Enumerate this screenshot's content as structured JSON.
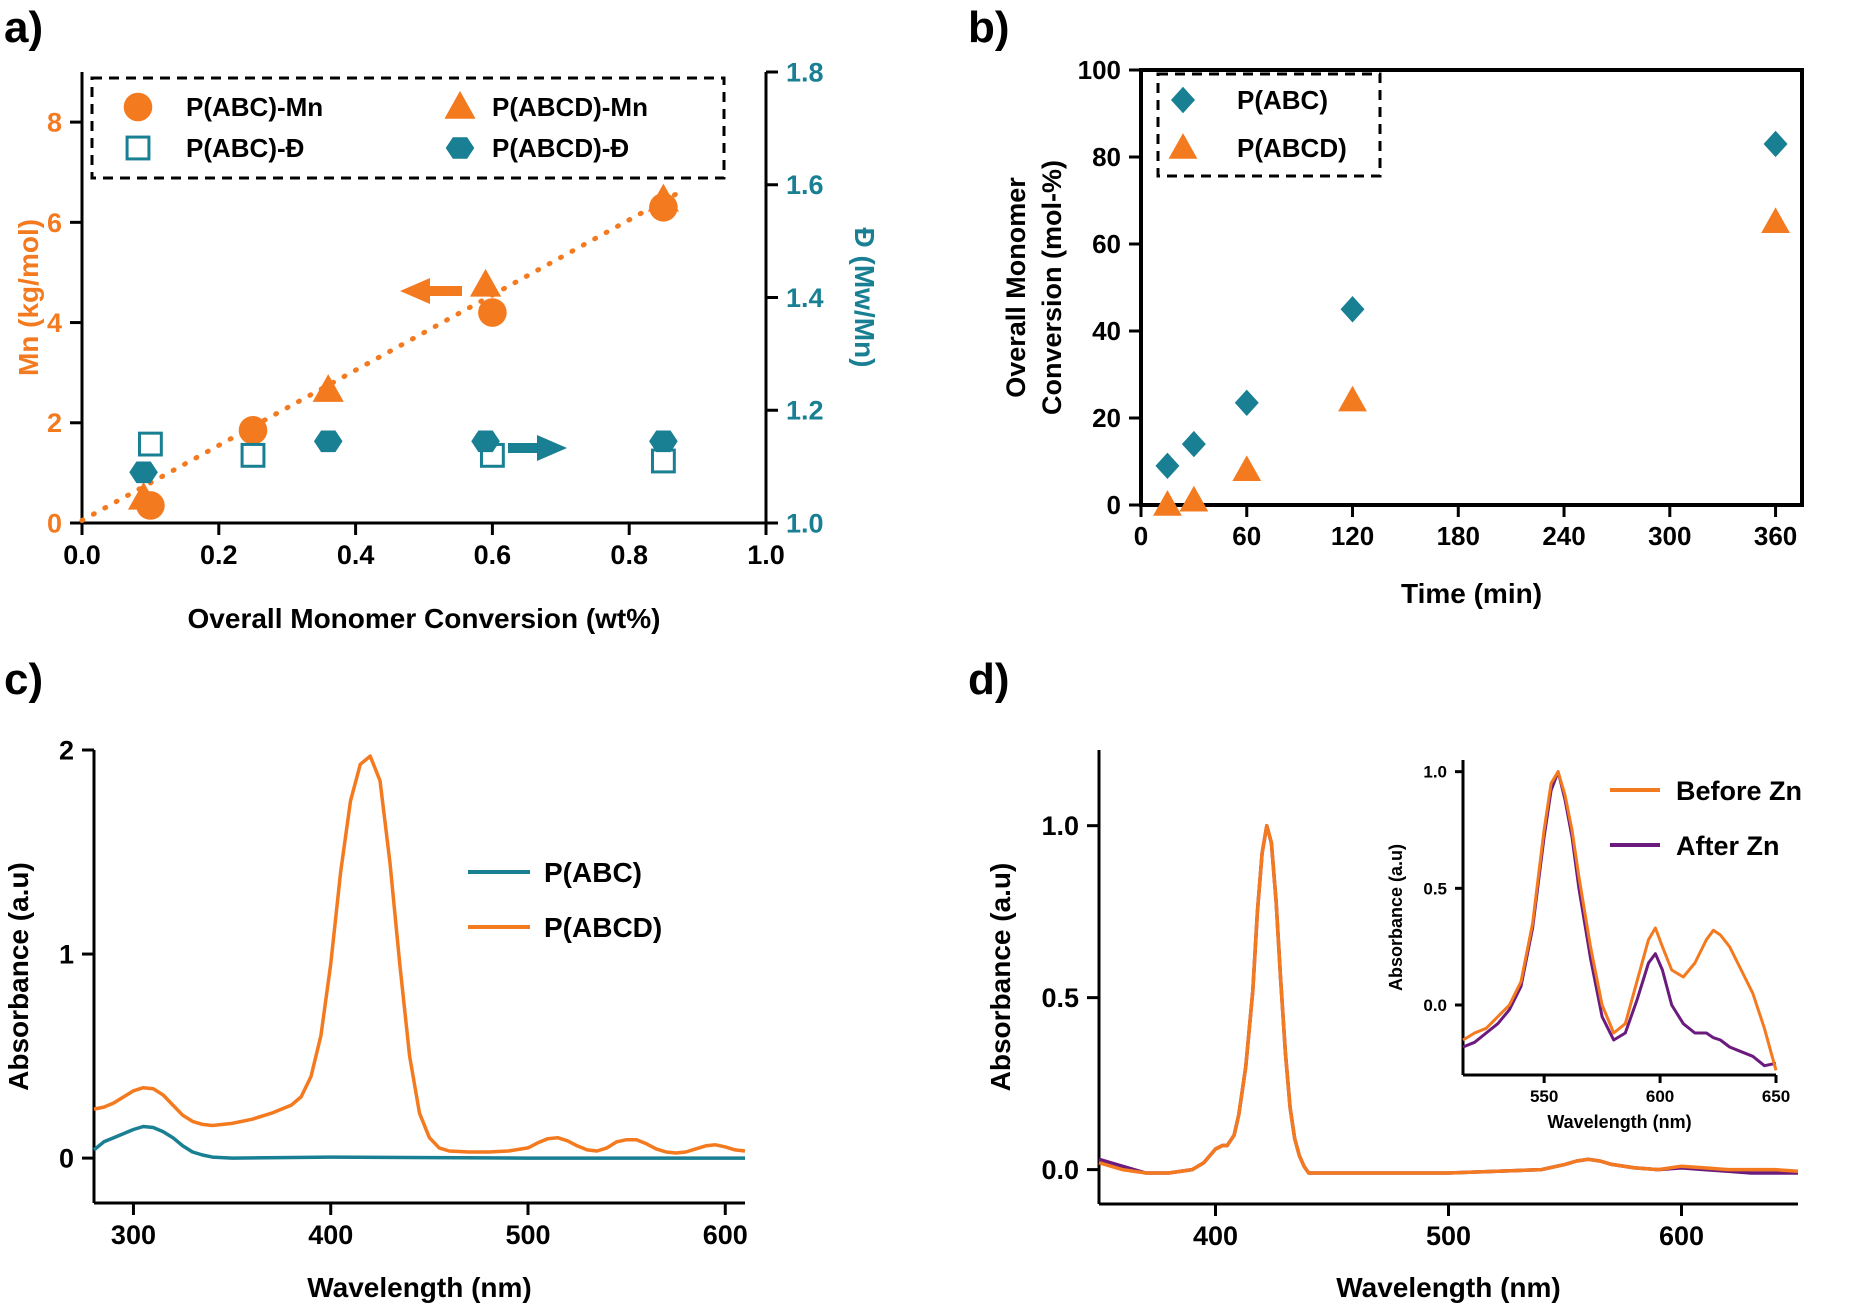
{
  "colors": {
    "orange": "#f47a20",
    "teal": "#197f93",
    "purple": "#6b1a7e",
    "axis": "#000000"
  },
  "chart_data": [
    {
      "panel": "a)",
      "type": "scatter",
      "xlabel": "Overall Monomer Conversion (wt%)",
      "ylabel_left": "Mn (kg/mol)",
      "ylabel_right": "Đ (Mw/Mn)",
      "xlim": [
        0.0,
        1.0
      ],
      "ylim_left": [
        0,
        9
      ],
      "ylim_right": [
        1.0,
        1.8
      ],
      "xticks": [
        "0.0",
        "0.2",
        "0.4",
        "0.6",
        "0.8",
        "1.0"
      ],
      "yticks_left": [
        "0",
        "2",
        "4",
        "6",
        "8"
      ],
      "yticks_right": [
        "1.0",
        "1.2",
        "1.4",
        "1.6",
        "1.8"
      ],
      "legend": "top, dashed box, 2 columns",
      "series": [
        {
          "name": "P(ABC)-Mn",
          "axis": "left",
          "marker": "circle",
          "color": "orange",
          "x": [
            0.1,
            0.25,
            0.6,
            0.85
          ],
          "y": [
            0.35,
            1.85,
            4.2,
            6.3
          ]
        },
        {
          "name": "P(ABCD)-Mn",
          "axis": "left",
          "marker": "triangle",
          "color": "orange",
          "x": [
            0.09,
            0.36,
            0.59,
            0.85
          ],
          "y": [
            0.5,
            2.65,
            4.75,
            6.45
          ]
        },
        {
          "name": "P(ABC)-Đ",
          "axis": "right",
          "marker": "open-square",
          "color": "teal",
          "x": [
            0.1,
            0.25,
            0.6,
            0.85
          ],
          "y": [
            1.14,
            1.12,
            1.12,
            1.11
          ]
        },
        {
          "name": "P(ABCD)-Đ",
          "axis": "right",
          "marker": "hexagon",
          "color": "teal",
          "x": [
            0.09,
            0.36,
            0.59,
            0.85
          ],
          "y": [
            1.09,
            1.145,
            1.145,
            1.145
          ]
        }
      ],
      "fit_line": {
        "x": [
          0.0,
          0.88
        ],
        "y": [
          0.05,
          6.65
        ],
        "style": "dotted",
        "color": "orange"
      }
    },
    {
      "panel": "b)",
      "type": "scatter",
      "xlabel": "Time (min)",
      "ylabel": "Overall Monomer Conversion (mol-%)",
      "xlim": [
        0,
        375
      ],
      "ylim": [
        0,
        100
      ],
      "xticks": [
        "0",
        "60",
        "120",
        "180",
        "240",
        "300",
        "360"
      ],
      "yticks": [
        "0",
        "20",
        "40",
        "60",
        "80",
        "100"
      ],
      "legend": "top-left, dashed box",
      "series": [
        {
          "name": "P(ABC)",
          "marker": "diamond",
          "color": "teal",
          "x": [
            15,
            30,
            60,
            120,
            360
          ],
          "y": [
            9,
            14,
            23.5,
            45,
            83
          ]
        },
        {
          "name": "P(ABCD)",
          "marker": "triangle",
          "color": "orange",
          "x": [
            15,
            30,
            60,
            120,
            360
          ],
          "y": [
            0,
            1,
            8,
            24,
            65
          ]
        }
      ]
    },
    {
      "panel": "c)",
      "type": "line",
      "xlabel": "Wavelength (nm)",
      "ylabel": "Absorbance (a.u)",
      "xlim": [
        280,
        610
      ],
      "ylim": [
        -0.22,
        2
      ],
      "xticks": [
        "300",
        "400",
        "500",
        "600"
      ],
      "yticks": [
        "0",
        "1",
        "2"
      ],
      "legend": "right of peak",
      "series": [
        {
          "name": "P(ABC)",
          "color": "teal",
          "x": [
            280,
            285,
            290,
            295,
            300,
            305,
            310,
            315,
            320,
            325,
            330,
            335,
            340,
            350,
            400,
            500,
            610
          ],
          "y": [
            0.04,
            0.08,
            0.1,
            0.12,
            0.14,
            0.155,
            0.15,
            0.13,
            0.1,
            0.06,
            0.03,
            0.015,
            0.005,
            0.0,
            0.005,
            0.0,
            0.0
          ]
        },
        {
          "name": "P(ABCD)",
          "color": "orange",
          "x": [
            280,
            285,
            290,
            295,
            300,
            305,
            310,
            315,
            320,
            325,
            330,
            335,
            340,
            350,
            360,
            370,
            380,
            385,
            390,
            395,
            400,
            405,
            410,
            415,
            420,
            425,
            430,
            435,
            440,
            445,
            450,
            455,
            460,
            470,
            480,
            490,
            500,
            505,
            510,
            515,
            520,
            525,
            530,
            535,
            540,
            545,
            550,
            555,
            560,
            565,
            570,
            575,
            580,
            585,
            590,
            595,
            600,
            605,
            610
          ],
          "y": [
            0.24,
            0.25,
            0.27,
            0.3,
            0.33,
            0.345,
            0.34,
            0.31,
            0.26,
            0.21,
            0.18,
            0.165,
            0.16,
            0.17,
            0.19,
            0.22,
            0.26,
            0.3,
            0.4,
            0.6,
            0.95,
            1.4,
            1.75,
            1.93,
            1.97,
            1.85,
            1.45,
            0.95,
            0.5,
            0.22,
            0.1,
            0.05,
            0.035,
            0.03,
            0.03,
            0.035,
            0.05,
            0.075,
            0.095,
            0.1,
            0.085,
            0.06,
            0.04,
            0.035,
            0.05,
            0.08,
            0.09,
            0.09,
            0.07,
            0.045,
            0.03,
            0.025,
            0.03,
            0.045,
            0.06,
            0.065,
            0.055,
            0.04,
            0.035
          ]
        }
      ]
    },
    {
      "panel": "d)",
      "type": "line",
      "xlabel": "Wavelength (nm)",
      "ylabel": "Absorbance (a.u)",
      "xlim": [
        350,
        650
      ],
      "ylim": [
        -0.1,
        1.22
      ],
      "xticks": [
        "400",
        "500",
        "600"
      ],
      "yticks": [
        "0.0",
        "0.5",
        "1.0"
      ],
      "legend": "top-right",
      "series": [
        {
          "name": "Before Zn",
          "color": "orange",
          "x": [
            350,
            360,
            370,
            380,
            390,
            395,
            400,
            403,
            405,
            408,
            410,
            413,
            416,
            418,
            420,
            422,
            424,
            426,
            428,
            430,
            432,
            434,
            436,
            438,
            440,
            445,
            450,
            500,
            540,
            550,
            555,
            560,
            565,
            570,
            580,
            590,
            600,
            610,
            620,
            630,
            640,
            650
          ],
          "y": [
            0.02,
            0.0,
            -0.01,
            -0.01,
            0.0,
            0.02,
            0.06,
            0.07,
            0.07,
            0.1,
            0.16,
            0.3,
            0.52,
            0.75,
            0.92,
            1.0,
            0.95,
            0.78,
            0.55,
            0.34,
            0.18,
            0.09,
            0.04,
            0.01,
            -0.01,
            -0.01,
            -0.01,
            -0.01,
            0.0,
            0.015,
            0.025,
            0.03,
            0.025,
            0.015,
            0.005,
            0.0,
            0.01,
            0.005,
            0.0,
            0.0,
            0.0,
            -0.005
          ]
        },
        {
          "name": "After Zn",
          "color": "purple",
          "x": [
            350,
            360,
            370,
            380,
            390,
            395,
            400,
            403,
            405,
            408,
            410,
            413,
            416,
            418,
            420,
            422,
            424,
            426,
            428,
            430,
            432,
            434,
            436,
            438,
            440,
            445,
            450,
            500,
            540,
            550,
            555,
            560,
            565,
            570,
            580,
            590,
            600,
            610,
            620,
            630,
            640,
            650
          ],
          "y": [
            0.03,
            0.01,
            -0.01,
            -0.01,
            0.0,
            0.02,
            0.06,
            0.07,
            0.07,
            0.1,
            0.16,
            0.3,
            0.52,
            0.75,
            0.92,
            1.0,
            0.95,
            0.78,
            0.55,
            0.34,
            0.18,
            0.09,
            0.04,
            0.01,
            -0.01,
            -0.01,
            -0.01,
            -0.01,
            0.0,
            0.015,
            0.025,
            0.03,
            0.025,
            0.015,
            0.005,
            0.0,
            0.005,
            0.0,
            -0.005,
            -0.01,
            -0.01,
            -0.01
          ]
        }
      ],
      "inset": {
        "xlabel": "Wavelength (nm)",
        "ylabel": "Absorbance (a.u)",
        "xlim": [
          515,
          650
        ],
        "ylim": [
          -0.3,
          1.05
        ],
        "xticks": [
          "550",
          "600",
          "650"
        ],
        "yticks": [
          "0.0",
          "0.5",
          "1.0"
        ],
        "series": [
          {
            "name": "Before Zn",
            "color": "orange",
            "x": [
              515,
              520,
              525,
              530,
              535,
              540,
              545,
              550,
              553,
              556,
              559,
              562,
              565,
              570,
              575,
              580,
              585,
              590,
              595,
              598,
              601,
              605,
              610,
              615,
              620,
              623,
              626,
              630,
              635,
              640,
              645,
              650
            ],
            "y": [
              -0.15,
              -0.12,
              -0.1,
              -0.05,
              0.0,
              0.1,
              0.35,
              0.75,
              0.95,
              1.0,
              0.9,
              0.75,
              0.55,
              0.25,
              0.0,
              -0.12,
              -0.08,
              0.1,
              0.28,
              0.33,
              0.25,
              0.15,
              0.12,
              0.18,
              0.28,
              0.32,
              0.3,
              0.25,
              0.15,
              0.05,
              -0.1,
              -0.28
            ]
          },
          {
            "name": "After Zn",
            "color": "purple",
            "x": [
              515,
              520,
              525,
              530,
              535,
              540,
              545,
              550,
              553,
              556,
              559,
              562,
              565,
              570,
              575,
              580,
              585,
              590,
              595,
              598,
              601,
              605,
              610,
              615,
              620,
              623,
              626,
              630,
              635,
              640,
              645,
              650
            ],
            "y": [
              -0.18,
              -0.16,
              -0.12,
              -0.08,
              -0.02,
              0.08,
              0.33,
              0.72,
              0.92,
              1.0,
              0.88,
              0.72,
              0.5,
              0.2,
              -0.05,
              -0.15,
              -0.12,
              0.02,
              0.18,
              0.22,
              0.15,
              0.0,
              -0.08,
              -0.12,
              -0.12,
              -0.14,
              -0.15,
              -0.18,
              -0.2,
              -0.22,
              -0.26,
              -0.25
            ]
          }
        ]
      }
    }
  ]
}
